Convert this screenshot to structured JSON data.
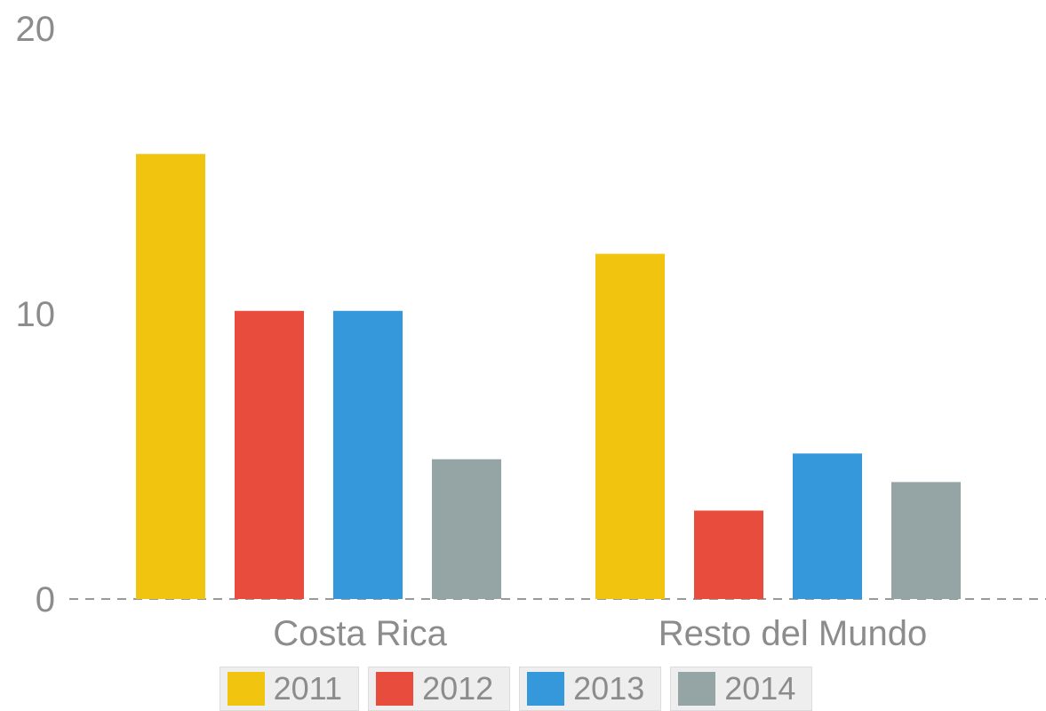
{
  "chart_data": {
    "type": "bar",
    "title": "",
    "xlabel": "",
    "ylabel": "",
    "categories": [
      "Costa Rica",
      "Resto del Mundo"
    ],
    "series": [
      {
        "name": "2011",
        "color": "#f1c40f",
        "values": [
          15.6,
          12.1
        ]
      },
      {
        "name": "2012",
        "color": "#e74c3c",
        "values": [
          10.1,
          3.1
        ]
      },
      {
        "name": "2013",
        "color": "#3498db",
        "values": [
          10.1,
          5.1
        ]
      },
      {
        "name": "2014",
        "color": "#95a5a6",
        "values": [
          4.9,
          4.1
        ]
      }
    ],
    "ylim": [
      0,
      20
    ],
    "yticks": [
      "0",
      "10",
      "20"
    ],
    "grid": false,
    "baseline_style": "dashed",
    "legend_position": "bottom"
  }
}
